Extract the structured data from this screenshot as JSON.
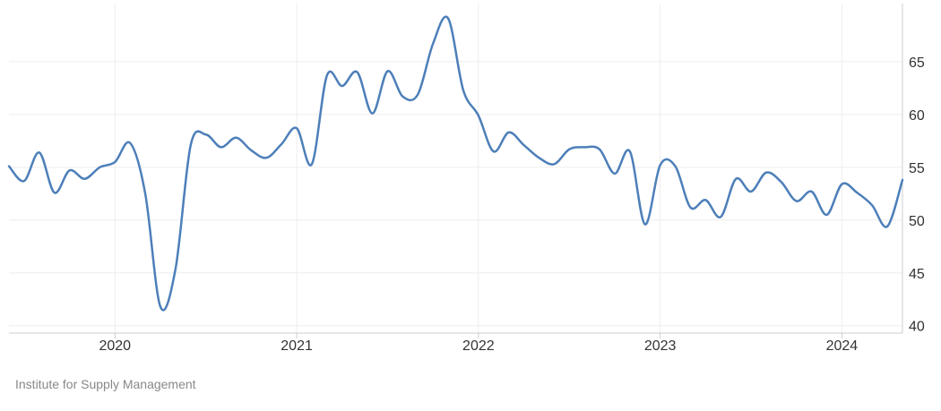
{
  "chart_data": {
    "type": "line",
    "title": "",
    "xlabel": "",
    "ylabel": "",
    "x_ticks": [
      "2020",
      "2021",
      "2022",
      "2023",
      "2024"
    ],
    "y_ticks": [
      40,
      45,
      50,
      55,
      60,
      65
    ],
    "xlim": [
      "2019-06",
      "2024-05"
    ],
    "ylim": [
      39.3,
      70.5
    ],
    "grid": true,
    "legend": "none",
    "series": [
      {
        "color": "#4d7fb9",
        "x": [
          "2019-06",
          "2019-07",
          "2019-08",
          "2019-09",
          "2019-10",
          "2019-11",
          "2019-12",
          "2020-01",
          "2020-02",
          "2020-03",
          "2020-04",
          "2020-05",
          "2020-06",
          "2020-07",
          "2020-08",
          "2020-09",
          "2020-10",
          "2020-11",
          "2020-12",
          "2021-01",
          "2021-02",
          "2021-03",
          "2021-04",
          "2021-05",
          "2021-06",
          "2021-07",
          "2021-08",
          "2021-09",
          "2021-10",
          "2021-11",
          "2021-12",
          "2022-01",
          "2022-02",
          "2022-03",
          "2022-04",
          "2022-05",
          "2022-06",
          "2022-07",
          "2022-08",
          "2022-09",
          "2022-10",
          "2022-11",
          "2022-12",
          "2023-01",
          "2023-02",
          "2023-03",
          "2023-04",
          "2023-05",
          "2023-06",
          "2023-07",
          "2023-08",
          "2023-09",
          "2023-10",
          "2023-11",
          "2023-12",
          "2024-01",
          "2024-02",
          "2024-03",
          "2024-04",
          "2024-05"
        ],
        "values": [
          55.1,
          53.7,
          56.4,
          52.6,
          54.7,
          53.9,
          55.0,
          55.5,
          57.3,
          52.5,
          41.8,
          45.4,
          57.1,
          58.1,
          56.9,
          57.8,
          56.6,
          55.9,
          57.2,
          58.7,
          55.3,
          63.7,
          62.7,
          64.0,
          60.1,
          64.1,
          61.7,
          61.9,
          66.7,
          69.1,
          62.3,
          59.9,
          56.5,
          58.3,
          57.1,
          55.9,
          55.3,
          56.7,
          56.9,
          56.7,
          54.4,
          56.5,
          49.6,
          55.2,
          55.1,
          51.2,
          51.9,
          50.3,
          53.9,
          52.7,
          54.5,
          53.6,
          51.8,
          52.7,
          50.5,
          53.4,
          52.6,
          51.4,
          49.4,
          53.8
        ]
      }
    ]
  },
  "source": "Institute for Supply Management"
}
